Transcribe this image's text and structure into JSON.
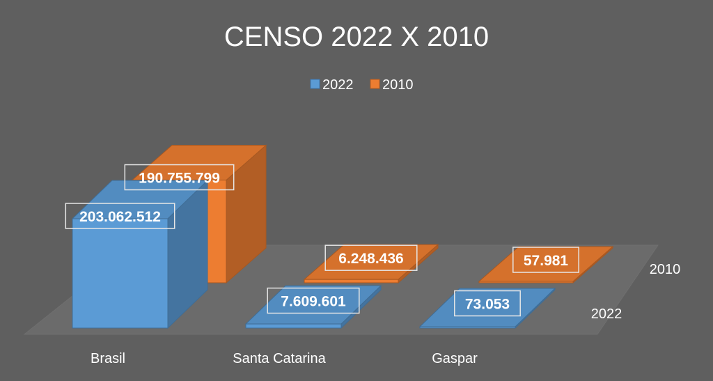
{
  "chart_data": {
    "type": "bar",
    "title": "CENSO 2022 X 2010",
    "categories": [
      "Brasil",
      "Santa Catarina",
      "Gaspar"
    ],
    "series": [
      {
        "name": "2022",
        "values": [
          203062512,
          7609601,
          73053
        ],
        "labels": [
          "203.062.512",
          "7.609.601",
          "73.053"
        ],
        "color": "#5b9bd5"
      },
      {
        "name": "2010",
        "values": [
          190755799,
          6248436,
          57981
        ],
        "labels": [
          "190.755.799",
          "6.248.436",
          "57.981"
        ],
        "color": "#ed7d31"
      }
    ],
    "depth_axis_labels": [
      "2010",
      "2022"
    ],
    "legend": {
      "placement": "top-center",
      "entries": [
        "2022",
        "2010"
      ]
    },
    "ylim": [
      0,
      203062512
    ],
    "grid": false,
    "style": "3d-column"
  }
}
